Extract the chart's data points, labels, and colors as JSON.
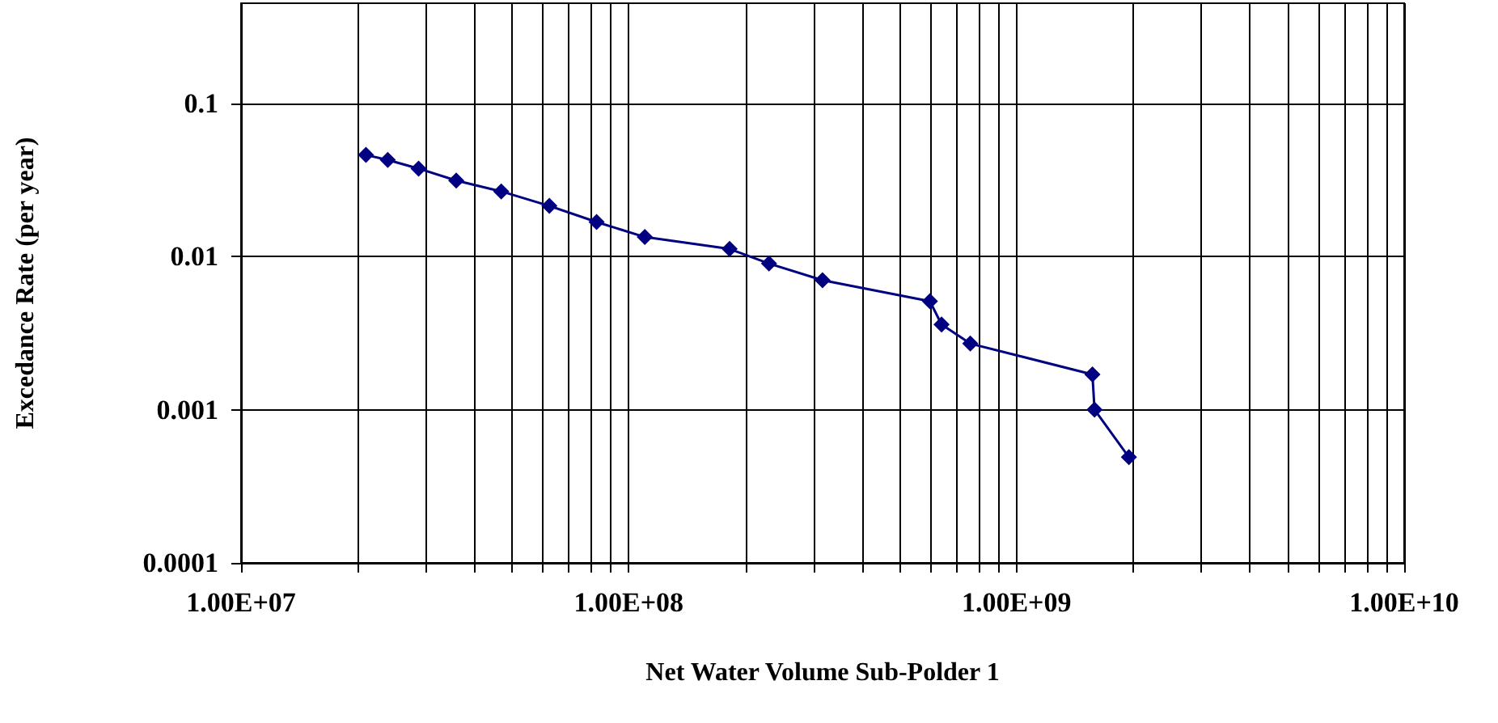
{
  "chart_data": {
    "type": "line",
    "xlabel": "Net Water Volume Sub-Polder 1",
    "ylabel": "Excedance Rate (per year)",
    "log": "xy",
    "grid": true,
    "marker": "diamond",
    "line_style": "solid",
    "x": [
      21000000.0,
      23900000.0,
      28700000.0,
      35900000.0,
      46900000.0,
      62400000.0,
      82600000.0,
      110000000.0,
      182000000.0,
      230000000.0,
      316000000.0,
      598000000.0,
      641000000.0,
      760000000.0,
      1570000000.0,
      1590000000.0,
      1950000000.0
    ],
    "series": [
      {
        "color": "#000080",
        "values": [
          0.046,
          0.0427,
          0.0375,
          0.0313,
          0.0266,
          0.0214,
          0.0168,
          0.0134,
          0.0112,
          0.009,
          0.007,
          0.0051,
          0.0036,
          0.0027,
          0.0017,
          0.001,
          0.00049
        ]
      }
    ],
    "xlim": [
      10000000.0,
      10000000000.0
    ],
    "xticks": [
      {
        "value": 10000000.0,
        "label": "1.00E+07"
      },
      {
        "value": 20000000.0,
        "label": null
      },
      {
        "value": 30000000.0,
        "label": null
      },
      {
        "value": 40000000.0,
        "label": null
      },
      {
        "value": 50000000.0,
        "label": null
      },
      {
        "value": 60000000.0,
        "label": null
      },
      {
        "value": 70000000.0,
        "label": null
      },
      {
        "value": 80000000.0,
        "label": null
      },
      {
        "value": 90000000.0,
        "label": null
      },
      {
        "value": 100000000.0,
        "label": "1.00E+08"
      },
      {
        "value": 200000000.0,
        "label": null
      },
      {
        "value": 300000000.0,
        "label": null
      },
      {
        "value": 400000000.0,
        "label": null
      },
      {
        "value": 500000000.0,
        "label": null
      },
      {
        "value": 600000000.0,
        "label": null
      },
      {
        "value": 700000000.0,
        "label": null
      },
      {
        "value": 800000000.0,
        "label": null
      },
      {
        "value": 900000000.0,
        "label": null
      },
      {
        "value": 1000000000.0,
        "label": "1.00E+09"
      },
      {
        "value": 2000000000.0,
        "label": null
      },
      {
        "value": 3000000000.0,
        "label": null
      },
      {
        "value": 4000000000.0,
        "label": null
      },
      {
        "value": 5000000000.0,
        "label": null
      },
      {
        "value": 6000000000.0,
        "label": null
      },
      {
        "value": 7000000000.0,
        "label": null
      },
      {
        "value": 8000000000.0,
        "label": null
      },
      {
        "value": 9000000000.0,
        "label": null
      },
      {
        "value": 10000000000.0,
        "label": "1.00E+10"
      }
    ],
    "ylim": [
      0.0001,
      0.45
    ],
    "yticks": [
      0.0001,
      0.001,
      0.01,
      0.1
    ]
  }
}
